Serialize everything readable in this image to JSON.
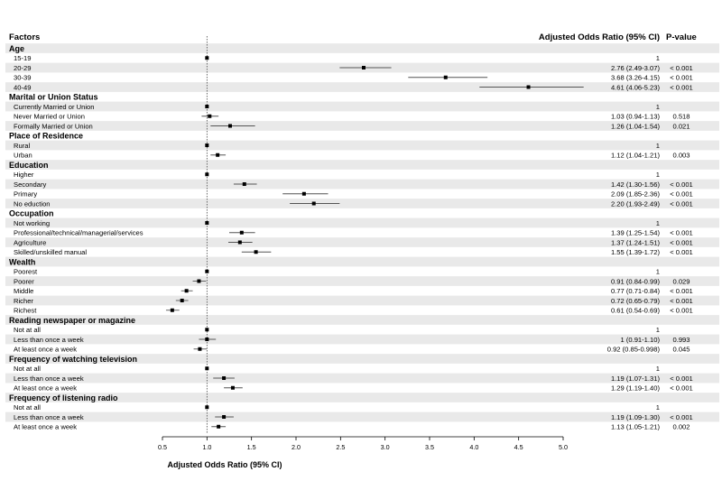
{
  "chart_data": {
    "type": "forest",
    "headers": {
      "factors": "Factors",
      "or_ci": "Adjusted Odds Ratio (95% CI)",
      "pvalue": "P-value"
    },
    "xlabel": "Adjusted Odds Ratio (95% CI)",
    "xlim": [
      0.5,
      5.0
    ],
    "xticks": [
      "0.5",
      "1.0",
      "1.5",
      "2.0",
      "2.5",
      "3.0",
      "3.5",
      "4.0",
      "4.5",
      "5.0"
    ],
    "reference_line": 1.0,
    "groups": [
      {
        "name": "Age",
        "rows": [
          {
            "label": "15-19",
            "or": 1,
            "lo": 1,
            "hi": 1,
            "or_text": "1",
            "p": ""
          },
          {
            "label": "20-29",
            "or": 2.76,
            "lo": 2.49,
            "hi": 3.07,
            "or_text": "2.76 (2.49-3.07)",
            "p": "< 0.001"
          },
          {
            "label": "30-39",
            "or": 3.68,
            "lo": 3.26,
            "hi": 4.15,
            "or_text": "3.68 (3.26-4.15)",
            "p": "< 0.001"
          },
          {
            "label": "40-49",
            "or": 4.61,
            "lo": 4.06,
            "hi": 5.23,
            "or_text": "4.61 (4.06-5.23)",
            "p": "< 0.001"
          }
        ]
      },
      {
        "name": "Marital or Union Status",
        "rows": [
          {
            "label": "Currently Married or Union",
            "or": 1,
            "lo": 1,
            "hi": 1,
            "or_text": "1",
            "p": ""
          },
          {
            "label": "Never Married or Union",
            "or": 1.03,
            "lo": 0.94,
            "hi": 1.13,
            "or_text": "1.03 (0.94-1.13)",
            "p": "0.518"
          },
          {
            "label": "Formally Married or Union",
            "or": 1.26,
            "lo": 1.04,
            "hi": 1.54,
            "or_text": "1.26 (1.04-1.54)",
            "p": "0.021"
          }
        ]
      },
      {
        "name": "Place of Residence",
        "rows": [
          {
            "label": "Rural",
            "or": 1,
            "lo": 1,
            "hi": 1,
            "or_text": "1",
            "p": ""
          },
          {
            "label": "Urban",
            "or": 1.12,
            "lo": 1.04,
            "hi": 1.21,
            "or_text": "1.12 (1.04-1.21)",
            "p": "0.003"
          }
        ]
      },
      {
        "name": "Education",
        "rows": [
          {
            "label": "Higher",
            "or": 1,
            "lo": 1,
            "hi": 1,
            "or_text": "1",
            "p": ""
          },
          {
            "label": "Secondary",
            "or": 1.42,
            "lo": 1.3,
            "hi": 1.56,
            "or_text": "1.42 (1.30-1.56)",
            "p": "< 0.001"
          },
          {
            "label": "Primary",
            "or": 2.09,
            "lo": 1.85,
            "hi": 2.36,
            "or_text": "2.09 (1.85-2.36)",
            "p": "< 0.001"
          },
          {
            "label": "No eduction",
            "or": 2.2,
            "lo": 1.93,
            "hi": 2.49,
            "or_text": "2.20 (1.93-2.49)",
            "p": "< 0.001"
          }
        ]
      },
      {
        "name": "Occupation",
        "rows": [
          {
            "label": "Not working",
            "or": 1,
            "lo": 1,
            "hi": 1,
            "or_text": "1",
            "p": ""
          },
          {
            "label": "Professional/technical/managerial/services",
            "or": 1.39,
            "lo": 1.25,
            "hi": 1.54,
            "or_text": "1.39 (1.25-1.54)",
            "p": "< 0.001"
          },
          {
            "label": "Agriculture",
            "or": 1.37,
            "lo": 1.24,
            "hi": 1.51,
            "or_text": "1.37 (1.24-1.51)",
            "p": "< 0.001"
          },
          {
            "label": "Skilled/unskilled manual",
            "or": 1.55,
            "lo": 1.39,
            "hi": 1.72,
            "or_text": "1.55 (1.39-1.72)",
            "p": "< 0.001"
          }
        ]
      },
      {
        "name": "Wealth",
        "rows": [
          {
            "label": "Poorest",
            "or": 1,
            "lo": 1,
            "hi": 1,
            "or_text": "1",
            "p": ""
          },
          {
            "label": "Poorer",
            "or": 0.91,
            "lo": 0.84,
            "hi": 0.99,
            "or_text": "0.91 (0.84-0.99)",
            "p": "0.029"
          },
          {
            "label": "Middle",
            "or": 0.77,
            "lo": 0.71,
            "hi": 0.84,
            "or_text": "0.77 (0.71-0.84)",
            "p": "< 0.001"
          },
          {
            "label": "Richer",
            "or": 0.72,
            "lo": 0.65,
            "hi": 0.79,
            "or_text": "0.72 (0.65-0.79)",
            "p": "< 0.001"
          },
          {
            "label": "Richest",
            "or": 0.61,
            "lo": 0.54,
            "hi": 0.69,
            "or_text": "0.61 (0.54-0.69)",
            "p": "< 0.001"
          }
        ]
      },
      {
        "name": "Reading newspaper or magazine",
        "rows": [
          {
            "label": "Not at all",
            "or": 1,
            "lo": 1,
            "hi": 1,
            "or_text": "1",
            "p": ""
          },
          {
            "label": "Less than once a week",
            "or": 1,
            "lo": 0.91,
            "hi": 1.1,
            "or_text": "1 (0.91-1.10)",
            "p": "0.993"
          },
          {
            "label": "At least once a week",
            "or": 0.92,
            "lo": 0.85,
            "hi": 0.998,
            "or_text": "0.92 (0.85-0.998)",
            "p": "0.045"
          }
        ]
      },
      {
        "name": "Frequency of watching television",
        "rows": [
          {
            "label": "Not at all",
            "or": 1,
            "lo": 1,
            "hi": 1,
            "or_text": "1",
            "p": ""
          },
          {
            "label": "Less than once a week",
            "or": 1.19,
            "lo": 1.07,
            "hi": 1.31,
            "or_text": "1.19 (1.07-1.31)",
            "p": "< 0.001"
          },
          {
            "label": "At least once a week",
            "or": 1.29,
            "lo": 1.19,
            "hi": 1.4,
            "or_text": "1.29 (1.19-1.40)",
            "p": "< 0.001"
          }
        ]
      },
      {
        "name": "Frequency of  listening radio",
        "rows": [
          {
            "label": "Not at all",
            "or": 1,
            "lo": 1,
            "hi": 1,
            "or_text": "1",
            "p": ""
          },
          {
            "label": "Less than once a week",
            "or": 1.19,
            "lo": 1.09,
            "hi": 1.3,
            "or_text": "1.19 (1.09-1.30)",
            "p": "< 0.001"
          },
          {
            "label": "At least once a week",
            "or": 1.13,
            "lo": 1.05,
            "hi": 1.21,
            "or_text": "1.13 (1.05-1.21)",
            "p": "0.002"
          }
        ]
      }
    ],
    "colors": {
      "stripe": "#e9e9e9",
      "ci_line": "#555555",
      "point": "#000000",
      "ref_line": "#444444"
    }
  }
}
